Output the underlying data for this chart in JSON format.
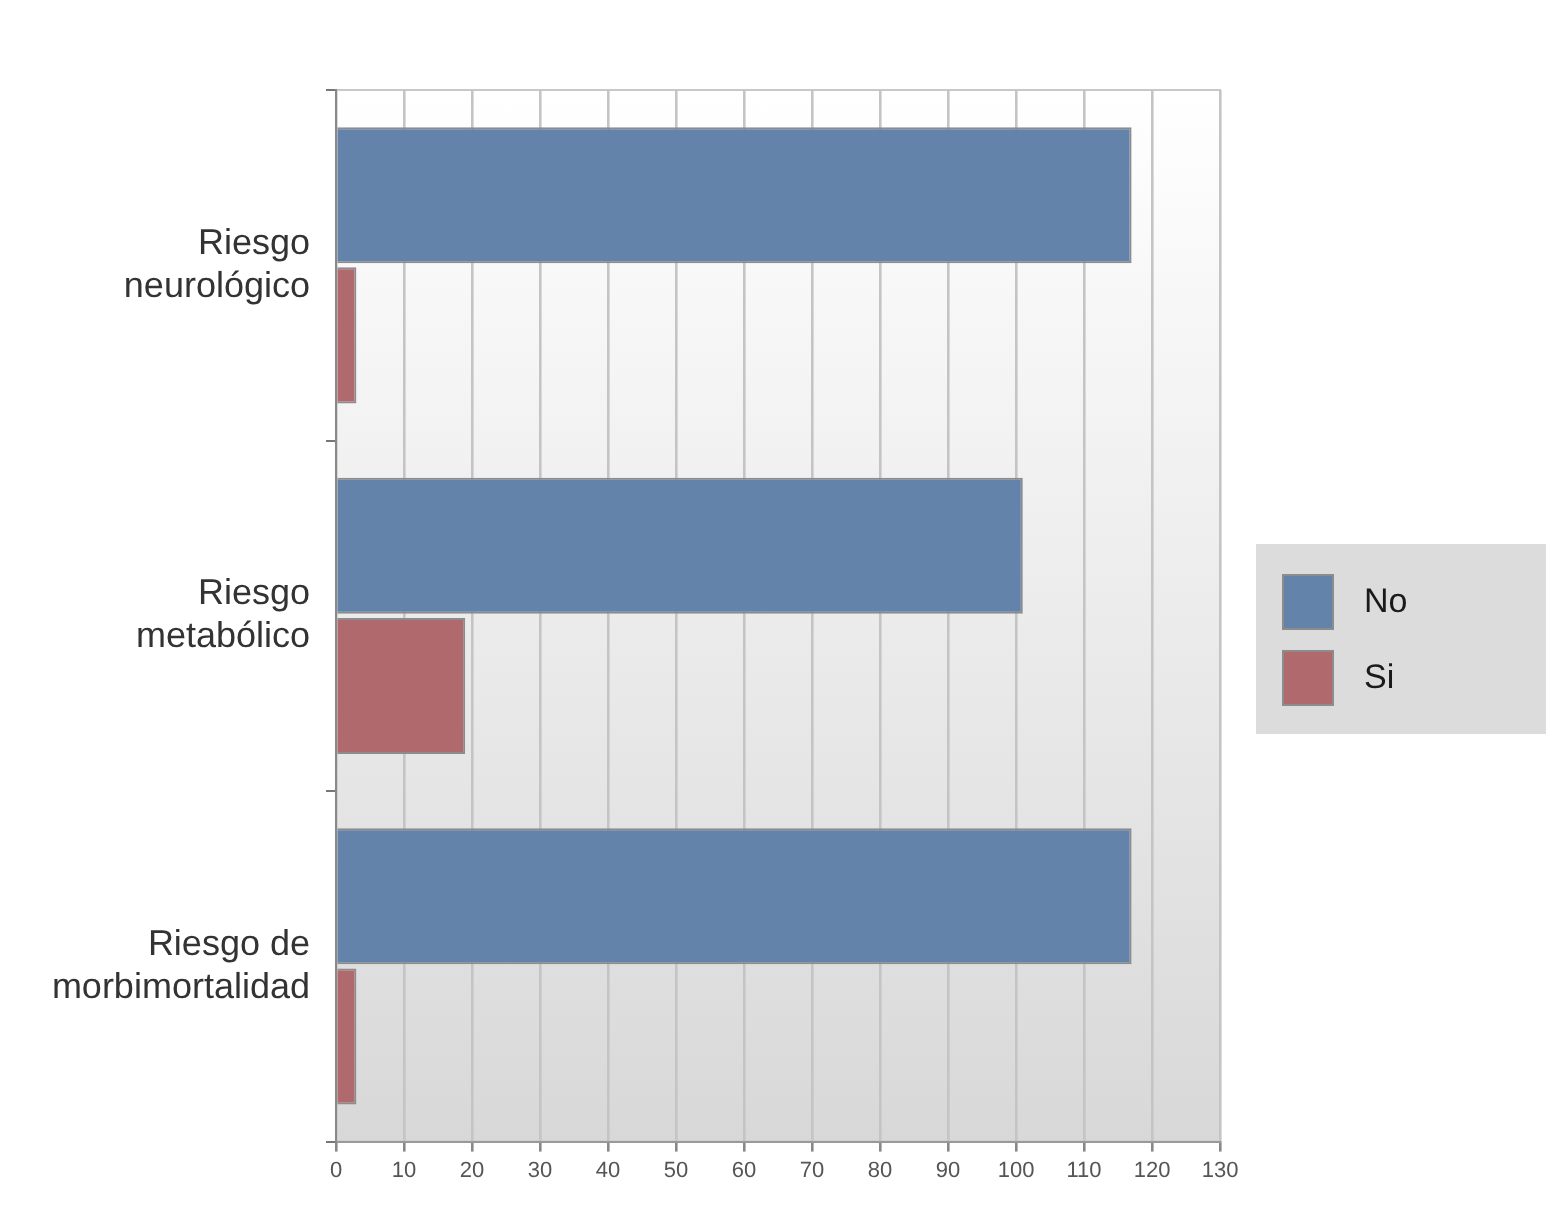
{
  "chart_data": {
    "type": "bar",
    "orientation": "horizontal",
    "categories": [
      "Riesgo neurológico",
      "Riesgo metabólico",
      "Riesgo de morbimortalidad"
    ],
    "series": [
      {
        "name": "No",
        "color": "#6383ab",
        "values": [
          117,
          101,
          117
        ]
      },
      {
        "name": "Si",
        "color": "#b06a6e",
        "values": [
          3,
          19,
          3
        ]
      }
    ],
    "xlim": [
      0,
      130
    ],
    "xticks": [
      0,
      10,
      20,
      30,
      40,
      50,
      60,
      70,
      80,
      90,
      100,
      110,
      120,
      130
    ],
    "grid": "x",
    "legend": "right"
  }
}
